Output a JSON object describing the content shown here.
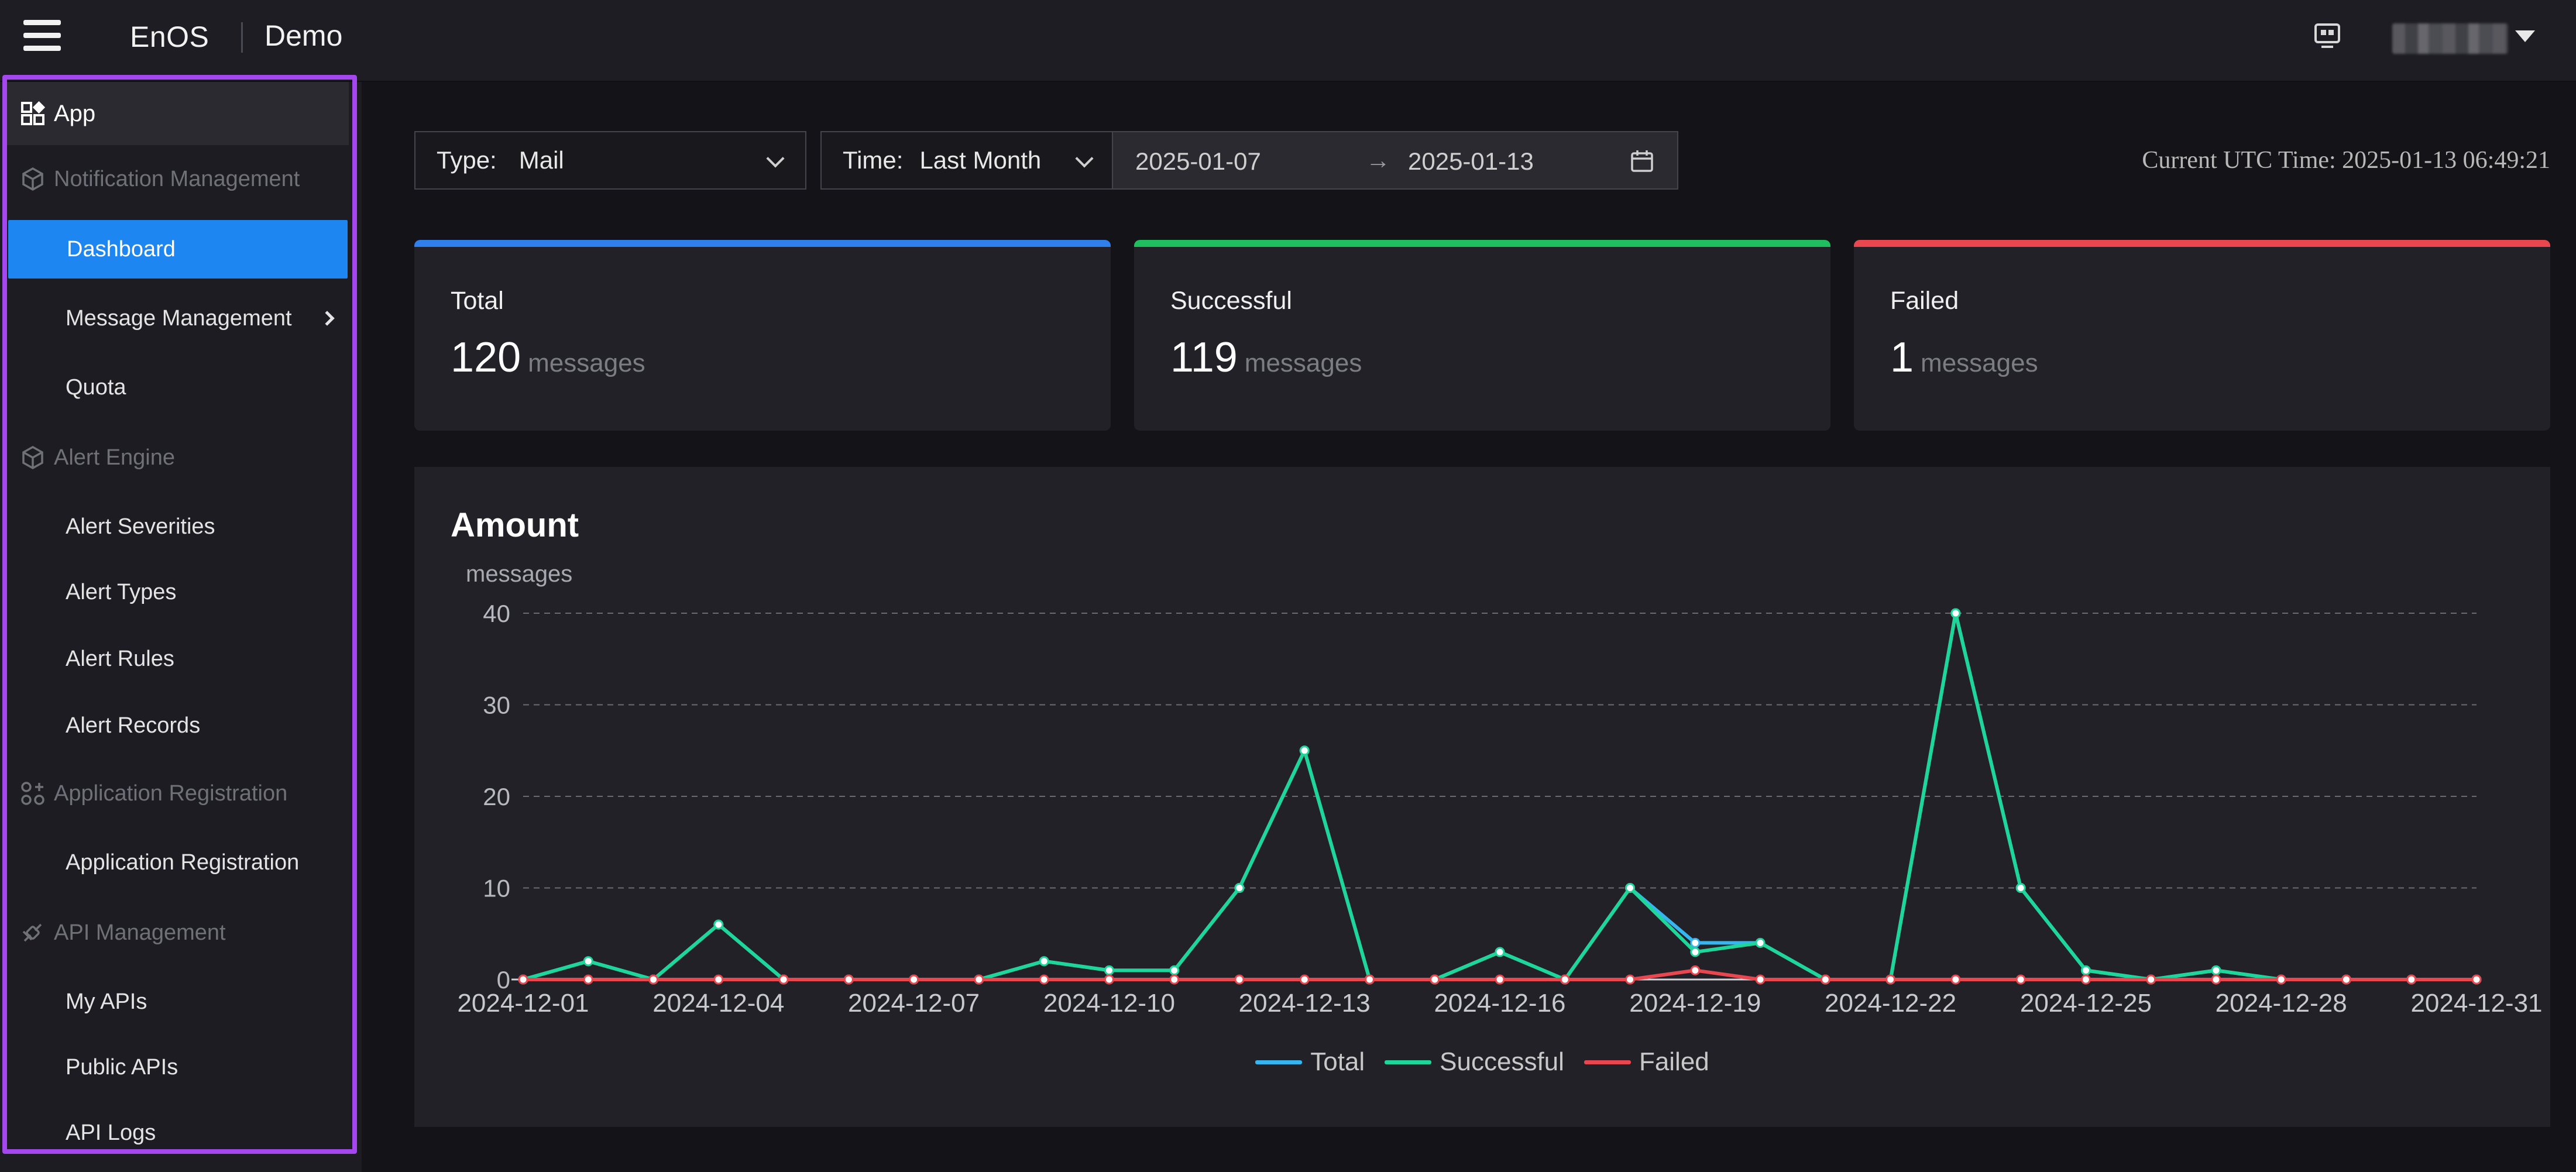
{
  "topbar": {
    "brand": "EnOS",
    "project": "Demo"
  },
  "sidebar": {
    "app_label": "App",
    "groups": [
      {
        "label": "Notification Management",
        "icon": "cube-icon",
        "items": [
          {
            "label": "Dashboard",
            "active": true
          },
          {
            "label": "Message Management",
            "has_submenu": true
          },
          {
            "label": "Quota"
          }
        ]
      },
      {
        "label": "Alert Engine",
        "icon": "cube-icon",
        "items": [
          {
            "label": "Alert Severities"
          },
          {
            "label": "Alert Types"
          },
          {
            "label": "Alert Rules"
          },
          {
            "label": "Alert Records"
          }
        ]
      },
      {
        "label": "Application Registration",
        "icon": "apps-icon",
        "items": [
          {
            "label": "Application Registration"
          }
        ]
      },
      {
        "label": "API Management",
        "icon": "api-icon",
        "items": [
          {
            "label": "My APIs"
          },
          {
            "label": "Public APIs"
          },
          {
            "label": "API Logs"
          }
        ]
      }
    ]
  },
  "filters": {
    "type_label": "Type:",
    "type_value": "Mail",
    "time_label": "Time:",
    "time_value": "Last Month",
    "date_start": "2025-01-07",
    "date_separator": "→",
    "date_end": "2025-01-13",
    "utc_time": "Current UTC Time: 2025-01-13 06:49:21"
  },
  "stats": [
    {
      "title": "Total",
      "value": "120",
      "unit": "messages",
      "color": "#2f80ed"
    },
    {
      "title": "Successful",
      "value": "119",
      "unit": "messages",
      "color": "#1fbf60"
    },
    {
      "title": "Failed",
      "value": "1",
      "unit": "messages",
      "color": "#e8474f"
    }
  ],
  "chart_data": {
    "type": "line",
    "title": "Amount",
    "ylabel": "messages",
    "xlabel": "",
    "ylim": [
      0,
      40
    ],
    "yticks": [
      0,
      10,
      20,
      30,
      40
    ],
    "grid": true,
    "legend_position": "bottom-center",
    "x": [
      "2024-12-01",
      "2024-12-02",
      "2024-12-03",
      "2024-12-04",
      "2024-12-05",
      "2024-12-06",
      "2024-12-07",
      "2024-12-08",
      "2024-12-09",
      "2024-12-10",
      "2024-12-11",
      "2024-12-12",
      "2024-12-13",
      "2024-12-14",
      "2024-12-15",
      "2024-12-16",
      "2024-12-17",
      "2024-12-18",
      "2024-12-19",
      "2024-12-20",
      "2024-12-21",
      "2024-12-22",
      "2024-12-23",
      "2024-12-24",
      "2024-12-25",
      "2024-12-26",
      "2024-12-27",
      "2024-12-28",
      "2024-12-29",
      "2024-12-30",
      "2024-12-31"
    ],
    "xtick_labels": [
      "2024-12-01",
      "2024-12-04",
      "2024-12-07",
      "2024-12-10",
      "2024-12-13",
      "2024-12-16",
      "2024-12-19",
      "2024-12-22",
      "2024-12-25",
      "2024-12-28",
      "2024-12-31"
    ],
    "series": [
      {
        "name": "Total",
        "color": "#36b6f0",
        "values": [
          0,
          2,
          0,
          6,
          0,
          0,
          0,
          0,
          2,
          1,
          1,
          10,
          25,
          0,
          0,
          3,
          0,
          10,
          4,
          4,
          0,
          0,
          40,
          10,
          1,
          0,
          1,
          0,
          0,
          0,
          0
        ]
      },
      {
        "name": "Successful",
        "color": "#1fd69a",
        "values": [
          0,
          2,
          0,
          6,
          0,
          0,
          0,
          0,
          2,
          1,
          1,
          10,
          25,
          0,
          0,
          3,
          0,
          10,
          3,
          4,
          0,
          0,
          40,
          10,
          1,
          0,
          1,
          0,
          0,
          0,
          0
        ]
      },
      {
        "name": "Failed",
        "color": "#e8474f",
        "values": [
          0,
          0,
          0,
          0,
          0,
          0,
          0,
          0,
          0,
          0,
          0,
          0,
          0,
          0,
          0,
          0,
          0,
          0,
          1,
          0,
          0,
          0,
          0,
          0,
          0,
          0,
          0,
          0,
          0,
          0,
          0
        ]
      }
    ]
  }
}
